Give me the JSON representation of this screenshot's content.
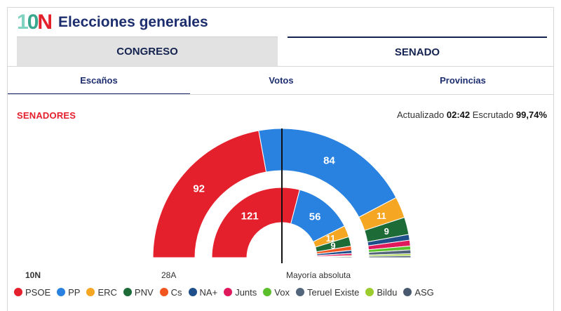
{
  "header": {
    "logo_text": "10N",
    "title": "Elecciones generales"
  },
  "tabs": [
    {
      "label": "CONGRESO",
      "active": false
    },
    {
      "label": "SENADO",
      "active": true
    }
  ],
  "subtabs": [
    {
      "label": "Escaños",
      "active": true
    },
    {
      "label": "Votos",
      "active": false
    },
    {
      "label": "Provincias",
      "active": false
    }
  ],
  "section_title": "SENADORES",
  "status": {
    "updated_label": "Actualizado",
    "updated_time": "02:42",
    "scrutiny_label": "Escrutado",
    "scrutiny_value": "99,74%"
  },
  "bottom_labels": {
    "current": "10N",
    "previous": "28A",
    "majority": "Mayoría absoluta"
  },
  "colors": {
    "PSOE": "#e4202d",
    "PP": "#2a82e0",
    "ERC": "#f5a623",
    "PNV": "#1d6b37",
    "Cs": "#f3551f",
    "NA+": "#1f4f8b",
    "Junts": "#e0185c",
    "Vox": "#5bbf2c",
    "Teruel Existe": "#52657a",
    "Bildu": "#9ccc2e",
    "ASG": "#4a5a6e"
  },
  "legend": [
    "PSOE",
    "PP",
    "ERC",
    "PNV",
    "Cs",
    "NA+",
    "Junts",
    "Vox",
    "Teruel Existe",
    "Bildu",
    "ASG"
  ],
  "chart_data": {
    "type": "pie",
    "title": "",
    "total_seats": 208,
    "outer_ring": {
      "label": "10N",
      "series": [
        {
          "name": "PSOE",
          "value": 92
        },
        {
          "name": "PP",
          "value": 84
        },
        {
          "name": "ERC",
          "value": 11
        },
        {
          "name": "PNV",
          "value": 9
        },
        {
          "name": "NA+",
          "value": 3
        },
        {
          "name": "Junts",
          "value": 3
        },
        {
          "name": "Vox",
          "value": 2
        },
        {
          "name": "Teruel Existe",
          "value": 2
        },
        {
          "name": "Bildu",
          "value": 1
        },
        {
          "name": "ASG",
          "value": 1
        }
      ]
    },
    "inner_ring": {
      "label": "28A",
      "series": [
        {
          "name": "PSOE",
          "value": 121
        },
        {
          "name": "PP",
          "value": 56
        },
        {
          "name": "ERC",
          "value": 11
        },
        {
          "name": "PNV",
          "value": 9
        },
        {
          "name": "Cs",
          "value": 4
        },
        {
          "name": "NA+",
          "value": 3
        },
        {
          "name": "Junts",
          "value": 2
        },
        {
          "name": "Bildu",
          "value": 1
        },
        {
          "name": "ASG",
          "value": 1
        }
      ]
    },
    "label_min_value": 9
  }
}
